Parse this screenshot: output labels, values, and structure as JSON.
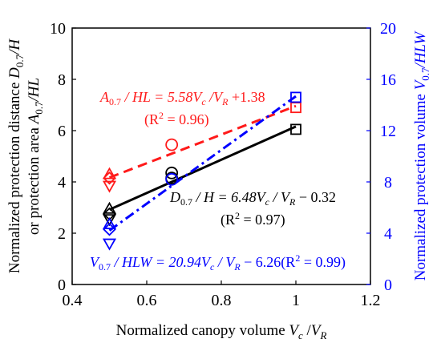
{
  "chart_data": {
    "type": "scatter",
    "xlabel": "Normalized canopy volume V_c/V_R",
    "ylabel_left": [
      "Normalized protection distance D_0.7/H",
      "or protection area A_0.7/HL"
    ],
    "ylabel_right": "Normalized protection volume V_0.7/HLW",
    "xlim": [
      0.4,
      1.2
    ],
    "ylim_left": [
      0,
      10
    ],
    "ylim_right": [
      0,
      20
    ],
    "x_ticks": [
      0.4,
      0.6,
      0.8,
      1,
      1.2
    ],
    "y_ticks_left": [
      0,
      2,
      4,
      6,
      8,
      10
    ],
    "y_ticks_right": [
      0,
      4,
      8,
      12,
      16,
      20
    ],
    "grid": false,
    "series": [
      {
        "axis": "left",
        "color": "#000000",
        "points": [
          {
            "x": 0.5,
            "y": 2.95,
            "marker": "triangle-up"
          },
          {
            "x": 0.5,
            "y": 2.75,
            "marker": "diamond"
          },
          {
            "x": 0.5,
            "y": 2.55,
            "marker": "triangle-down"
          },
          {
            "x": 0.667,
            "y": 4.35,
            "marker": "circle"
          },
          {
            "x": 0.667,
            "y": 4.15,
            "marker": "circle"
          },
          {
            "x": 1.0,
            "y": 6.05,
            "marker": "square"
          }
        ],
        "fit": {
          "slope": 6.48,
          "intercept": -0.32,
          "x": [
            0.5,
            1.0
          ],
          "dash": "solid"
        }
      },
      {
        "axis": "left",
        "color": "#ff1a1a",
        "points": [
          {
            "x": 0.5,
            "y": 4.3,
            "marker": "triangle-up"
          },
          {
            "x": 0.5,
            "y": 4.15,
            "marker": "diamond"
          },
          {
            "x": 0.5,
            "y": 3.85,
            "marker": "triangle-down"
          },
          {
            "x": 0.667,
            "y": 5.45,
            "marker": "circle"
          },
          {
            "x": 1.0,
            "y": 6.9,
            "marker": "square"
          }
        ],
        "fit": {
          "slope": 5.58,
          "intercept": 1.38,
          "x": [
            0.5,
            1.0
          ],
          "dash": "dashed"
        }
      },
      {
        "axis": "right",
        "color": "#0000ff",
        "points": [
          {
            "x": 0.5,
            "y": 4.7,
            "marker": "triangle-up"
          },
          {
            "x": 0.5,
            "y": 4.3,
            "marker": "diamond"
          },
          {
            "x": 0.5,
            "y": 3.2,
            "marker": "triangle-down"
          },
          {
            "x": 0.667,
            "y": 8.2,
            "marker": "circle"
          },
          {
            "x": 1.0,
            "y": 14.6,
            "marker": "square"
          }
        ],
        "fit": {
          "slope": 20.94,
          "intercept": -6.26,
          "x": [
            0.5,
            1.0
          ],
          "dash": "dashdot"
        }
      }
    ],
    "annotations": {
      "red_eq": "A_0.7 / HL = 5.58V_c / V_R + 1.38",
      "red_r2": "(R² = 0.96)",
      "black_eq": "D_0.7 / H = 6.48V_c / V_R − 0.32",
      "black_r2": "(R² = 0.97)",
      "blue_eq": "V_0.7 / HLW = 20.94V_c / V_R − 6.26(R² = 0.99)"
    }
  },
  "text": {
    "ylabel_left_line1": {
      "a": "Normalized protection distance ",
      "sym": "D",
      "sub": "0.7",
      "rest": "/H"
    },
    "ylabel_left_line2": {
      "a": "or protection area ",
      "sym": "A",
      "sub": "0.7",
      "rest": "/HL"
    },
    "ylabel_right": {
      "a": "Normalized protection volume ",
      "sym": "V",
      "sub": "0.7",
      "rest": "/HLW"
    },
    "xlabel": {
      "a": "Normalized canopy volume ",
      "sym1": "V",
      "sub1": "c",
      "mid": " /",
      "sym2": "V",
      "sub2": "R"
    },
    "red_eq": {
      "a": "A",
      "sub1": "0.7",
      "b": " / HL = 5.58V",
      "sub2": "c",
      "c": " /V",
      "sub3": "R",
      "d": " +1.38"
    },
    "red_r2": {
      "a": "(R",
      "sup": "2",
      "b": " = 0.96)"
    },
    "black_eq": {
      "a": "D",
      "sub1": "0.7",
      "b": " / H = 6.48V",
      "sub2": "c",
      "c": " / V",
      "sub3": "R",
      "d": " − 0.32"
    },
    "black_r2": {
      "a": "(R",
      "sup": "2",
      "b": " = 0.97)"
    },
    "blue_eq": {
      "a": "V",
      "sub1": "0.7",
      "b": " / HLW = 20.94V",
      "sub2": "c",
      "c": " / V",
      "sub3": "R",
      "d": " − 6.26(R",
      "sup": "2",
      "e": " = 0.99)"
    }
  }
}
